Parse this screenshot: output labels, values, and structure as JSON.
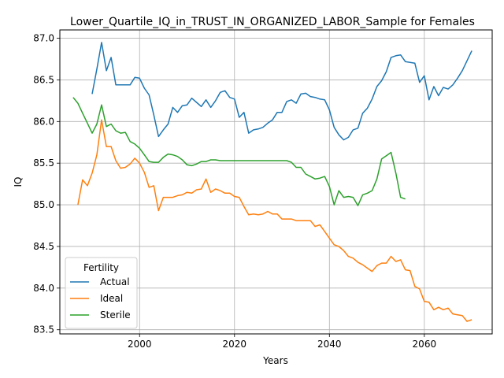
{
  "chart_data": {
    "type": "line",
    "title": "Lower_Quartile_IQ_in_TRUST_IN_ORGANIZED_LABOR_Sample for Females",
    "xlabel": "Years",
    "ylabel": "IQ",
    "xlim": [
      1983.2,
      2074.3
    ],
    "ylim": [
      83.45,
      87.1
    ],
    "xticks": [
      2000,
      2020,
      2040,
      2060
    ],
    "yticks": [
      83.5,
      84.0,
      84.5,
      85.0,
      85.5,
      86.0,
      86.5,
      87.0
    ],
    "grid": true,
    "legend": {
      "title": "Fertility",
      "position": "lower-left"
    },
    "series": [
      {
        "name": "Actual",
        "color": "#1f77b4",
        "x": [
          1990,
          1991,
          1992,
          1993,
          1994,
          1995,
          1996,
          1997,
          1998,
          1999,
          2000,
          2001,
          2002,
          2003,
          2004,
          2005,
          2006,
          2007,
          2008,
          2009,
          2010,
          2011,
          2012,
          2013,
          2014,
          2015,
          2016,
          2017,
          2018,
          2019,
          2020,
          2021,
          2022,
          2023,
          2024,
          2025,
          2026,
          2027,
          2028,
          2029,
          2030,
          2031,
          2032,
          2033,
          2034,
          2035,
          2036,
          2037,
          2038,
          2039,
          2040,
          2041,
          2042,
          2043,
          2044,
          2045,
          2046,
          2047,
          2048,
          2049,
          2050,
          2051,
          2052,
          2053,
          2054,
          2055,
          2056,
          2057,
          2058,
          2059,
          2060,
          2061,
          2062,
          2063,
          2064,
          2065,
          2066,
          2067,
          2068,
          2069,
          2070
        ],
        "y": [
          86.33,
          86.63,
          86.95,
          86.61,
          86.77,
          86.44,
          86.44,
          86.44,
          86.44,
          86.53,
          86.52,
          86.4,
          86.32,
          86.08,
          85.82,
          85.9,
          85.97,
          86.17,
          86.11,
          86.19,
          86.2,
          86.28,
          86.23,
          86.18,
          86.26,
          86.17,
          86.25,
          86.35,
          86.37,
          86.29,
          86.27,
          86.05,
          86.11,
          85.86,
          85.9,
          85.91,
          85.93,
          85.98,
          86.02,
          86.11,
          86.11,
          86.24,
          86.26,
          86.22,
          86.33,
          86.34,
          86.3,
          86.29,
          86.27,
          86.26,
          86.14,
          85.93,
          85.84,
          85.78,
          85.81,
          85.9,
          85.92,
          86.1,
          86.16,
          86.27,
          86.42,
          86.49,
          86.6,
          86.77,
          86.79,
          86.8,
          86.72,
          86.71,
          86.7,
          86.47,
          86.55,
          86.26,
          86.42,
          86.31,
          86.41,
          86.39,
          86.44,
          86.52,
          86.61,
          86.73,
          86.85
        ]
      },
      {
        "name": "Ideal",
        "color": "#ff7f0e",
        "x": [
          1987,
          1988,
          1989,
          1990,
          1991,
          1992,
          1993,
          1994,
          1995,
          1996,
          1997,
          1998,
          1999,
          2000,
          2001,
          2002,
          2003,
          2004,
          2005,
          2006,
          2007,
          2008,
          2009,
          2010,
          2011,
          2012,
          2013,
          2014,
          2015,
          2016,
          2017,
          2018,
          2019,
          2020,
          2021,
          2022,
          2023,
          2024,
          2025,
          2026,
          2027,
          2028,
          2029,
          2030,
          2031,
          2032,
          2033,
          2034,
          2035,
          2036,
          2037,
          2038,
          2039,
          2040,
          2041,
          2042,
          2043,
          2044,
          2045,
          2046,
          2047,
          2048,
          2049,
          2050,
          2051,
          2052,
          2053,
          2054,
          2055,
          2056,
          2057,
          2058,
          2059,
          2060,
          2061,
          2062,
          2063,
          2064,
          2065,
          2066,
          2067,
          2068,
          2069,
          2070
        ],
        "y": [
          85.0,
          85.3,
          85.23,
          85.38,
          85.6,
          86.02,
          85.7,
          85.7,
          85.53,
          85.44,
          85.45,
          85.49,
          85.56,
          85.5,
          85.39,
          85.21,
          85.23,
          84.93,
          85.09,
          85.09,
          85.09,
          85.11,
          85.12,
          85.15,
          85.14,
          85.18,
          85.19,
          85.31,
          85.15,
          85.19,
          85.17,
          85.14,
          85.14,
          85.1,
          85.09,
          84.98,
          84.88,
          84.89,
          84.88,
          84.89,
          84.92,
          84.89,
          84.89,
          84.83,
          84.83,
          84.83,
          84.81,
          84.81,
          84.81,
          84.81,
          84.74,
          84.76,
          84.68,
          84.6,
          84.52,
          84.5,
          84.45,
          84.38,
          84.36,
          84.31,
          84.28,
          84.24,
          84.2,
          84.27,
          84.3,
          84.3,
          84.38,
          84.32,
          84.34,
          84.22,
          84.21,
          84.02,
          83.99,
          83.84,
          83.83,
          83.74,
          83.77,
          83.74,
          83.76,
          83.69,
          83.68,
          83.67,
          83.6,
          83.62
        ]
      },
      {
        "name": "Sterile",
        "color": "#2ca02c",
        "x": [
          1986,
          1987,
          1988,
          1989,
          1990,
          1991,
          1992,
          1993,
          1994,
          1995,
          1996,
          1997,
          1998,
          1999,
          2000,
          2001,
          2002,
          2003,
          2004,
          2005,
          2006,
          2007,
          2008,
          2009,
          2010,
          2011,
          2012,
          2013,
          2014,
          2015,
          2016,
          2017,
          2018,
          2019,
          2020,
          2021,
          2022,
          2023,
          2024,
          2025,
          2026,
          2027,
          2028,
          2029,
          2030,
          2031,
          2032,
          2033,
          2034,
          2035,
          2036,
          2037,
          2038,
          2039,
          2040,
          2041,
          2042,
          2043,
          2044,
          2045,
          2046,
          2047,
          2048,
          2049,
          2050,
          2051,
          2052,
          2053,
          2054,
          2055,
          2056
        ],
        "y": [
          86.29,
          86.22,
          86.1,
          85.98,
          85.86,
          85.97,
          86.2,
          85.94,
          85.97,
          85.89,
          85.86,
          85.87,
          85.76,
          85.73,
          85.68,
          85.6,
          85.52,
          85.51,
          85.51,
          85.57,
          85.61,
          85.6,
          85.58,
          85.54,
          85.48,
          85.47,
          85.49,
          85.52,
          85.52,
          85.54,
          85.54,
          85.53,
          85.53,
          85.53,
          85.53,
          85.53,
          85.53,
          85.53,
          85.53,
          85.53,
          85.53,
          85.53,
          85.53,
          85.53,
          85.53,
          85.53,
          85.51,
          85.45,
          85.45,
          85.37,
          85.34,
          85.31,
          85.32,
          85.34,
          85.22,
          85.0,
          85.17,
          85.09,
          85.1,
          85.09,
          84.99,
          85.12,
          85.14,
          85.17,
          85.31,
          85.55,
          85.59,
          85.63,
          85.38,
          85.09,
          85.07
        ]
      }
    ]
  }
}
